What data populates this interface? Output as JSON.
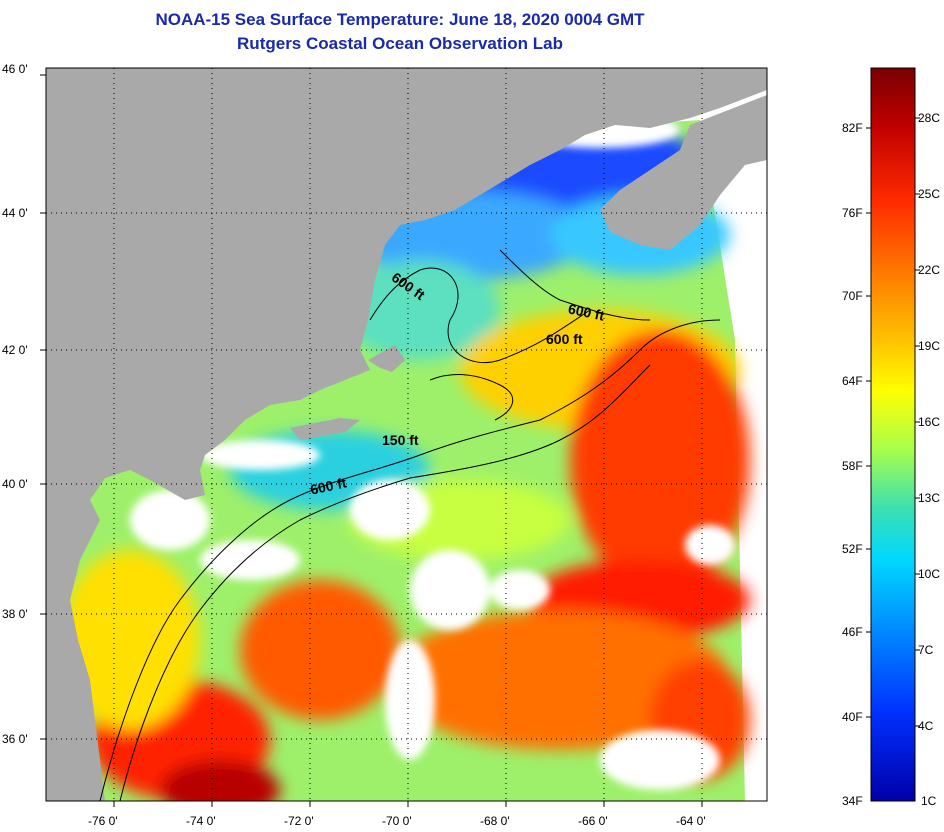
{
  "title": {
    "line1": "NOAA-15 Sea Surface Temperature:  June 18, 2020 0004 GMT",
    "line2": "Rutgers Coastal Ocean Observation Lab"
  },
  "map": {
    "lat_labels": [
      "46 0'",
      "44 0'",
      "42 0'",
      "40 0'",
      "38 0'",
      "36 0'"
    ],
    "lon_labels": [
      "-76 0'",
      "-74 0'",
      "-72 0'",
      "-70 0'",
      "-68 0'",
      "-66 0'",
      "-64 0'"
    ],
    "isobath_labels": [
      "600 ft",
      "600 ft",
      "600 ft",
      "150 ft",
      "600 ft"
    ],
    "land_color": "#a9a9a9",
    "cloud_color": "#ffffff"
  },
  "colorbar": {
    "fahrenheit": [
      "82F",
      "76F",
      "70F",
      "64F",
      "58F",
      "52F",
      "46F",
      "40F",
      "34F"
    ],
    "celsius": [
      "28C",
      "25C",
      "22C",
      "19C",
      "16C",
      "13C",
      "10C",
      "7C",
      "4C",
      "1C"
    ],
    "colors_top_to_bottom": [
      "#7a0000",
      "#c00000",
      "#ff2a00",
      "#ff7a00",
      "#ffc000",
      "#ffff00",
      "#a8ff4a",
      "#3ce0b0",
      "#00d8ff",
      "#0090ff",
      "#0030ff",
      "#0000a8"
    ]
  }
}
